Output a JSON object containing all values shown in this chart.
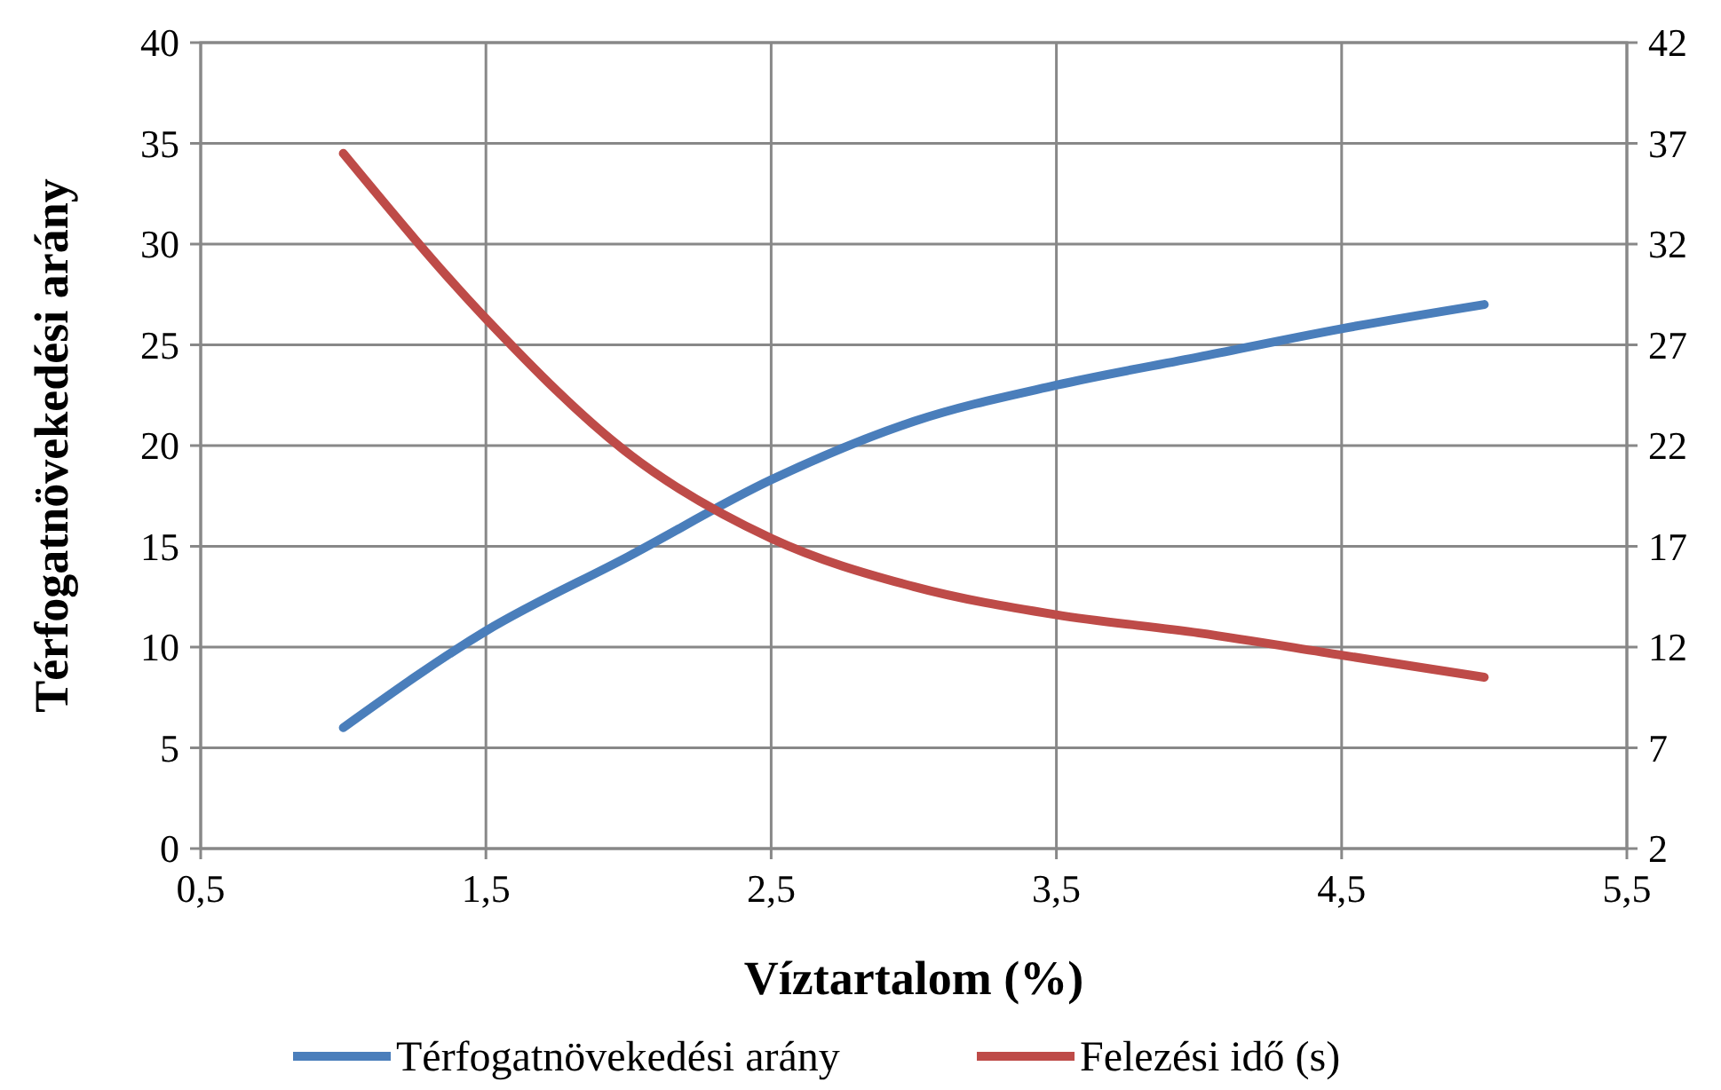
{
  "chart_data": {
    "type": "line",
    "xlabel": "Víztartalom  (%)",
    "ylabel": "Térfogatnövekedési arány",
    "x": [
      1,
      1.5,
      2,
      2.5,
      3,
      3.5,
      4,
      4.5,
      5
    ],
    "series": [
      {
        "name": "Térfogatnövekedési arány",
        "color": "#4a7ebb",
        "values": [
          6,
          10.8,
          14.5,
          18.3,
          21.2,
          23,
          24.4,
          25.8,
          27
        ]
      },
      {
        "name": "Felezési idő (s)",
        "color": "#be4b48",
        "axis": "y2",
        "values": [
          36.5,
          28.3,
          21.6,
          17.4,
          15,
          13.6,
          12.7,
          11.6,
          10.5
        ]
      }
    ],
    "xlim": [
      0.5,
      5.5
    ],
    "xticks": [
      {
        "value": 0.5,
        "label": "0,5"
      },
      {
        "value": 1.5,
        "label": "1,5"
      },
      {
        "value": 2.5,
        "label": "2,5"
      },
      {
        "value": 3.5,
        "label": "3,5"
      },
      {
        "value": 4.5,
        "label": "4,5"
      },
      {
        "value": 5.5,
        "label": "5,5"
      }
    ],
    "ylim": [
      0,
      40
    ],
    "yticks": [
      0,
      5,
      10,
      15,
      20,
      25,
      30,
      35,
      40
    ],
    "y2lim": [
      2,
      42
    ],
    "y2ticks": [
      2,
      7,
      12,
      17,
      22,
      27,
      32,
      37,
      42
    ],
    "grid": true,
    "legend": "bottom",
    "marker": "none",
    "line_style": "solid"
  }
}
